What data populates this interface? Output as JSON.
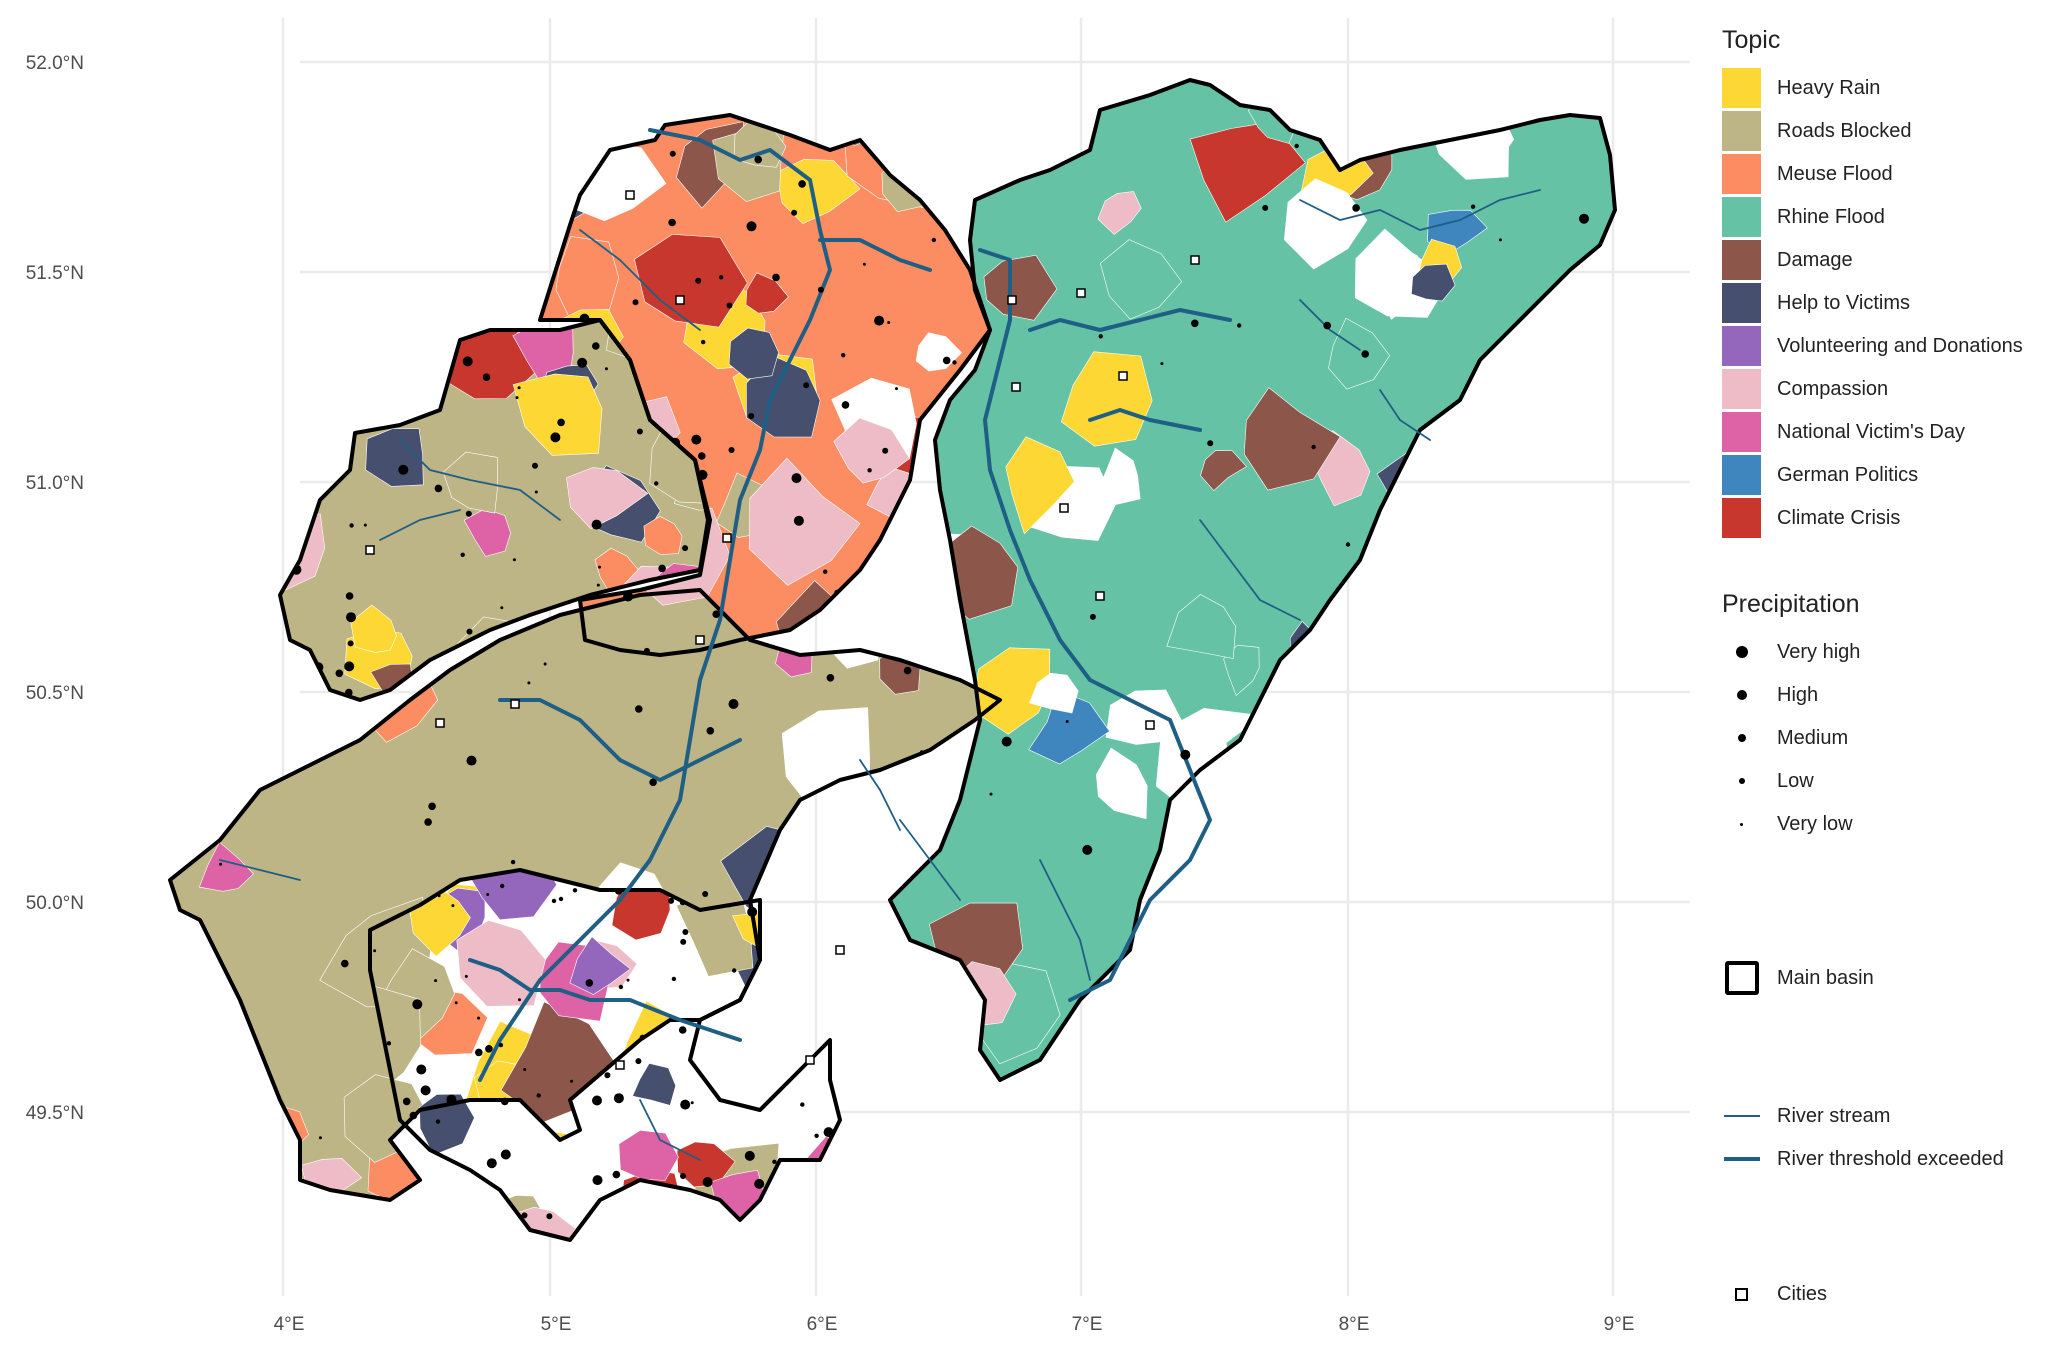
{
  "map": {
    "lat_ticks": [
      "52.0°N",
      "51.5°N",
      "51.0°N",
      "50.5°N",
      "50.0°N",
      "49.5°N"
    ],
    "lon_ticks": [
      "4°E",
      "5°E",
      "6°E",
      "7°E",
      "8°E",
      "9°E"
    ],
    "colors": {
      "heavy_rain": "#FDD835",
      "roads_blocked": "#BDB585",
      "meuse_flood": "#FC8D62",
      "rhine_flood": "#66C2A5",
      "damage": "#8C564B",
      "help_to_victims": "#474F6E",
      "volunteering": "#9467BD",
      "compassion": "#EEBCC6",
      "national_victims_day": "#DE62A6",
      "german_politics": "#3F86BE",
      "climate_crisis": "#C8372D",
      "river": "#1F5F85",
      "basin_outline": "#000000",
      "grid": "#ebebeb"
    }
  },
  "legend": {
    "topic_title": "Topic",
    "topics": [
      {
        "label": "Heavy Rain",
        "color": "#FDD835"
      },
      {
        "label": "Roads Blocked",
        "color": "#BDB585"
      },
      {
        "label": "Meuse Flood",
        "color": "#FC8D62"
      },
      {
        "label": "Rhine Flood",
        "color": "#66C2A5"
      },
      {
        "label": "Damage",
        "color": "#8C564B"
      },
      {
        "label": "Help to Victims",
        "color": "#474F6E"
      },
      {
        "label": "Volunteering and Donations",
        "color": "#9467BD"
      },
      {
        "label": "Compassion",
        "color": "#EEBCC6"
      },
      {
        "label": "National Victim's Day",
        "color": "#DE62A6"
      },
      {
        "label": "German Politics",
        "color": "#3F86BE"
      },
      {
        "label": "Climate Crisis",
        "color": "#C8372D"
      }
    ],
    "precip_title": "Precipitation",
    "precipitation": [
      {
        "label": "Very  high",
        "level": 5
      },
      {
        "label": "High",
        "level": 4
      },
      {
        "label": "Medium",
        "level": 3
      },
      {
        "label": "Low",
        "level": 2
      },
      {
        "label": "Very  low",
        "level": 1
      }
    ],
    "main_basin": "Main basin",
    "river_stream": "River stream",
    "river_threshold": "River threshold exceeded",
    "cities": "Cities"
  }
}
